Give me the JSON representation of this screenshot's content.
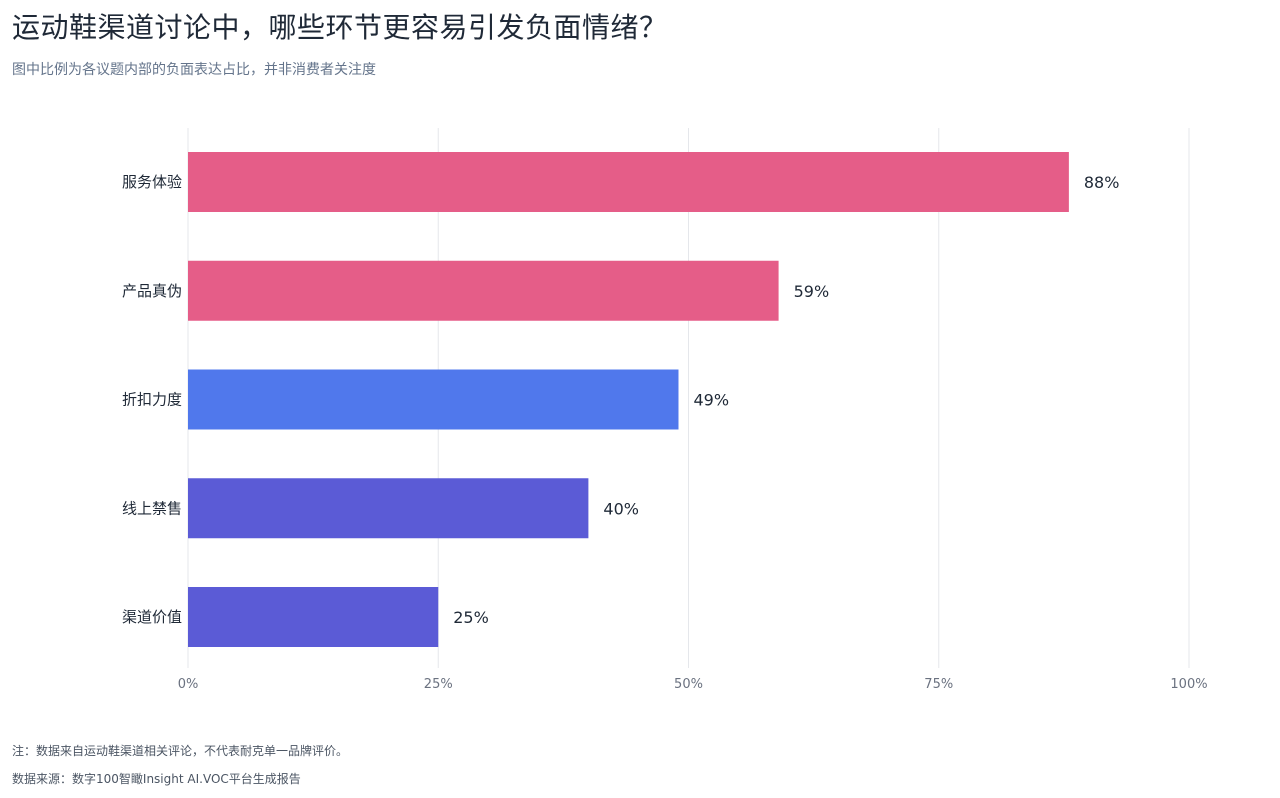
{
  "title": "运动鞋渠道讨论中，哪些环节更容易引发负面情绪？",
  "subtitle": "图中比例为各议题内部的负面表达占比，并非消费者关注度",
  "note": "注：数据来自运动鞋渠道相关评论，不代表耐克单一品牌评价。",
  "source": "数据来源：数字100智瞰Insight AI.VOC平台生成报告",
  "chart_data": {
    "type": "bar",
    "orientation": "horizontal",
    "title": "运动鞋渠道讨论中，哪些环节更容易引发负面情绪？",
    "subtitle": "图中比例为各议题内部的负面表达占比，并非消费者关注度",
    "categories": [
      "服务体验",
      "产品真伪",
      "折扣力度",
      "线上禁售",
      "渠道价值"
    ],
    "values": [
      88,
      59,
      49,
      40,
      25
    ],
    "value_labels": [
      "88%",
      "59%",
      "49%",
      "40%",
      "25%"
    ],
    "colors": [
      "#e55d88",
      "#e55d88",
      "#5078ec",
      "#5b5bd6",
      "#5b5bd6"
    ],
    "xlim": [
      0,
      100
    ],
    "xticks": [
      0,
      25,
      50,
      75,
      100
    ],
    "xtick_labels": [
      "0%",
      "25%",
      "50%",
      "75%",
      "100%"
    ],
    "xlabel": "",
    "ylabel": "",
    "grid": true,
    "legend": "none"
  }
}
